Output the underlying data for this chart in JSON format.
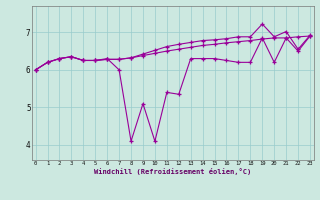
{
  "xlabel": "Windchill (Refroidissement éolien,°C)",
  "bg_color": "#cce8e0",
  "grid_color": "#99cccc",
  "line_color": "#990099",
  "x_ticks": [
    0,
    1,
    2,
    3,
    4,
    5,
    6,
    7,
    8,
    9,
    10,
    11,
    12,
    13,
    14,
    15,
    16,
    17,
    18,
    19,
    20,
    21,
    22,
    23
  ],
  "y_ticks": [
    4,
    5,
    6,
    7
  ],
  "ylim": [
    3.6,
    7.7
  ],
  "xlim": [
    -0.3,
    23.3
  ],
  "line1": [
    6.0,
    6.2,
    6.3,
    6.35,
    6.25,
    6.25,
    6.3,
    6.0,
    4.1,
    5.1,
    4.1,
    5.4,
    5.35,
    6.3,
    6.3,
    6.3,
    6.25,
    6.2,
    6.2,
    6.85,
    6.2,
    6.85,
    6.5,
    6.9
  ],
  "line2": [
    6.0,
    6.2,
    6.3,
    6.35,
    6.25,
    6.25,
    6.28,
    6.28,
    6.32,
    6.38,
    6.44,
    6.5,
    6.55,
    6.6,
    6.65,
    6.68,
    6.72,
    6.75,
    6.78,
    6.82,
    6.85,
    6.85,
    6.88,
    6.9
  ],
  "line3": [
    6.0,
    6.2,
    6.3,
    6.35,
    6.25,
    6.25,
    6.28,
    6.28,
    6.32,
    6.42,
    6.52,
    6.62,
    6.68,
    6.73,
    6.78,
    6.8,
    6.83,
    6.88,
    6.88,
    7.22,
    6.88,
    7.02,
    6.55,
    6.92
  ]
}
